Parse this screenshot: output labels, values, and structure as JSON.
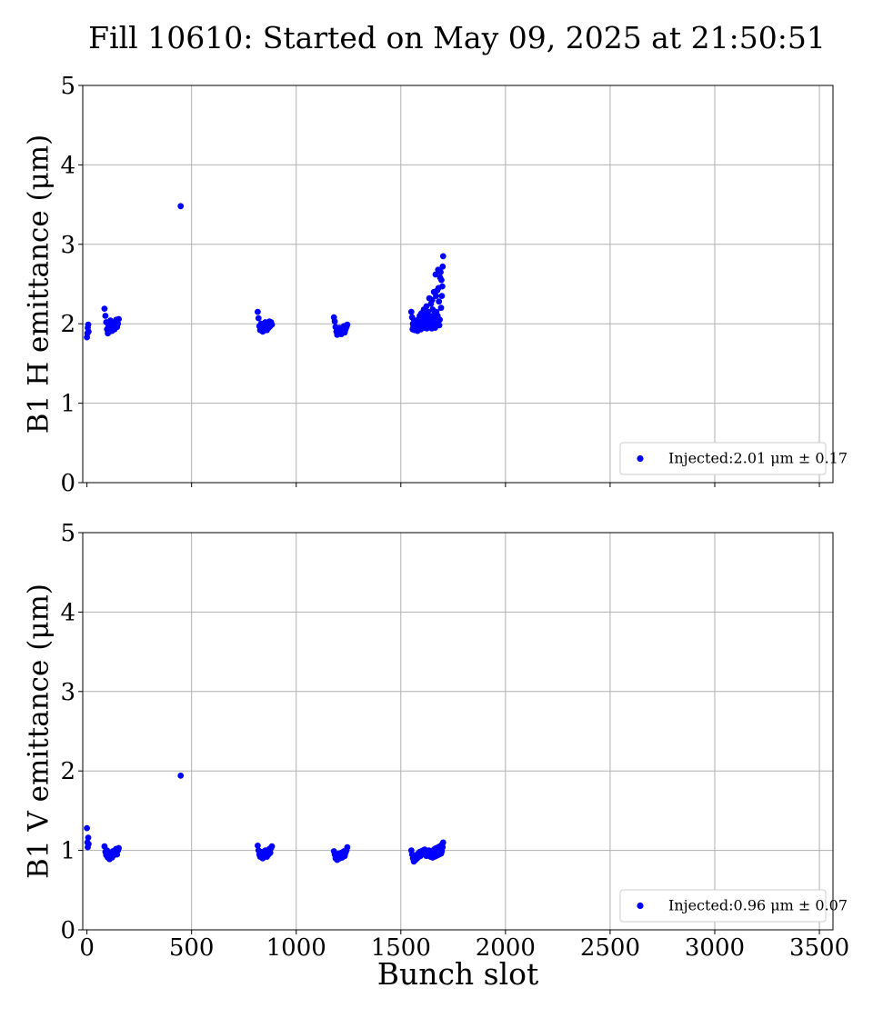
{
  "figure": {
    "title": "Fill 10610: Started on May 09, 2025 at 21:50:51",
    "xlabel": "Bunch slot"
  },
  "chart_data": [
    {
      "type": "scatter",
      "ylabel": "B1 H emittance (μm)",
      "xlim": [
        -20,
        3565
      ],
      "ylim": [
        0,
        5
      ],
      "xticks": [
        0,
        500,
        1000,
        1500,
        2000,
        2500,
        3000,
        3500
      ],
      "yticks": [
        0,
        1,
        2,
        3,
        4,
        5
      ],
      "grid": true,
      "legend_position": "lower-right",
      "series": [
        {
          "name": "Injected:2.01 μm ± 0.17",
          "color": "#0000ff",
          "points": [
            [
              0,
              1.83
            ],
            [
              2,
              1.88
            ],
            [
              4,
              1.95
            ],
            [
              6,
              1.99
            ],
            [
              8,
              1.9
            ],
            [
              84,
              2.19
            ],
            [
              88,
              2.1
            ],
            [
              92,
              2.02
            ],
            [
              96,
              1.93
            ],
            [
              100,
              1.88
            ],
            [
              104,
              1.97
            ],
            [
              108,
              1.9
            ],
            [
              112,
              2.04
            ],
            [
              116,
              1.95
            ],
            [
              120,
              1.91
            ],
            [
              124,
              1.99
            ],
            [
              128,
              2.02
            ],
            [
              132,
              1.93
            ],
            [
              136,
              1.97
            ],
            [
              140,
              2.05
            ],
            [
              144,
              1.96
            ],
            [
              148,
              2.0
            ],
            [
              152,
              2.06
            ],
            [
              448,
              3.48
            ],
            [
              816,
              2.15
            ],
            [
              820,
              2.07
            ],
            [
              824,
              1.97
            ],
            [
              828,
              1.92
            ],
            [
              832,
              2.0
            ],
            [
              836,
              1.94
            ],
            [
              840,
              1.9
            ],
            [
              844,
              1.99
            ],
            [
              848,
              1.93
            ],
            [
              852,
              2.02
            ],
            [
              856,
              1.96
            ],
            [
              860,
              1.92
            ],
            [
              864,
              2.0
            ],
            [
              868,
              1.95
            ],
            [
              872,
              2.03
            ],
            [
              876,
              1.97
            ],
            [
              880,
              2.02
            ],
            [
              884,
              1.99
            ],
            [
              1180,
              2.08
            ],
            [
              1184,
              2.03
            ],
            [
              1188,
              1.96
            ],
            [
              1192,
              1.9
            ],
            [
              1196,
              1.86
            ],
            [
              1200,
              1.93
            ],
            [
              1204,
              1.88
            ],
            [
              1208,
              1.95
            ],
            [
              1212,
              1.9
            ],
            [
              1216,
              1.87
            ],
            [
              1220,
              1.94
            ],
            [
              1224,
              1.91
            ],
            [
              1228,
              1.97
            ],
            [
              1232,
              1.89
            ],
            [
              1236,
              1.93
            ],
            [
              1240,
              1.96
            ],
            [
              1244,
              1.99
            ],
            [
              1550,
              2.15
            ],
            [
              1554,
              2.08
            ],
            [
              1558,
              2.0
            ],
            [
              1562,
              1.94
            ],
            [
              1566,
              1.92
            ],
            [
              1570,
              1.97
            ],
            [
              1574,
              2.02
            ],
            [
              1578,
              1.95
            ],
            [
              1582,
              2.05
            ],
            [
              1586,
              1.98
            ],
            [
              1590,
              2.1
            ],
            [
              1594,
              2.0
            ],
            [
              1598,
              2.13
            ],
            [
              1602,
              2.04
            ],
            [
              1606,
              2.08
            ],
            [
              1610,
              2.18
            ],
            [
              1614,
              2.02
            ],
            [
              1618,
              2.12
            ],
            [
              1622,
              2.22
            ],
            [
              1626,
              2.06
            ],
            [
              1630,
              2.15
            ],
            [
              1634,
              1.96
            ],
            [
              1638,
              2.05
            ],
            [
              1642,
              1.98
            ],
            [
              1646,
              2.09
            ],
            [
              1650,
              2.3
            ],
            [
              1654,
              2.0
            ],
            [
              1658,
              2.4
            ],
            [
              1662,
              2.07
            ],
            [
              1666,
              2.62
            ],
            [
              1670,
              2.15
            ],
            [
              1674,
              2.42
            ],
            [
              1678,
              2.68
            ],
            [
              1682,
              2.28
            ],
            [
              1686,
              2.05
            ],
            [
              1690,
              2.65
            ],
            [
              1694,
              2.55
            ],
            [
              1698,
              2.47
            ],
            [
              1702,
              2.85
            ],
            [
              1700,
              2.72
            ],
            [
              1696,
              2.35
            ],
            [
              1692,
              2.2
            ],
            [
              1688,
              2.58
            ],
            [
              1684,
              1.98
            ],
            [
              1680,
              2.45
            ],
            [
              1676,
              2.1
            ],
            [
              1672,
              2.0
            ],
            [
              1668,
              2.35
            ],
            [
              1664,
              1.95
            ],
            [
              1660,
              2.12
            ],
            [
              1656,
              1.97
            ],
            [
              1652,
              2.18
            ],
            [
              1648,
              1.94
            ],
            [
              1644,
              2.25
            ],
            [
              1640,
              2.02
            ],
            [
              1636,
              2.32
            ],
            [
              1632,
              2.1
            ],
            [
              1628,
              2.0
            ],
            [
              1624,
              1.94
            ],
            [
              1620,
              2.06
            ],
            [
              1616,
              1.99
            ],
            [
              1612,
              1.95
            ],
            [
              1608,
              2.01
            ],
            [
              1604,
              1.96
            ],
            [
              1600,
              2.07
            ],
            [
              1596,
              1.93
            ],
            [
              1592,
              1.99
            ],
            [
              1588,
              2.03
            ],
            [
              1584,
              1.96
            ],
            [
              1580,
              1.91
            ],
            [
              1576,
              2.01
            ],
            [
              1572,
              1.95
            ],
            [
              1568,
              1.99
            ],
            [
              1564,
              2.04
            ],
            [
              1560,
              1.97
            ],
            [
              1556,
              1.93
            ]
          ]
        }
      ]
    },
    {
      "type": "scatter",
      "ylabel": "B1 V emittance (μm)",
      "xlim": [
        -20,
        3565
      ],
      "ylim": [
        0,
        5
      ],
      "xticks": [
        0,
        500,
        1000,
        1500,
        2000,
        2500,
        3000,
        3500
      ],
      "yticks": [
        0,
        1,
        2,
        3,
        4,
        5
      ],
      "grid": true,
      "legend_position": "lower-right",
      "series": [
        {
          "name": "Injected:0.96 μm ± 0.07",
          "color": "#0000ff",
          "points": [
            [
              0,
              1.28
            ],
            [
              2,
              1.1
            ],
            [
              4,
              1.04
            ],
            [
              6,
              1.16
            ],
            [
              8,
              1.08
            ],
            [
              84,
              1.05
            ],
            [
              88,
              0.98
            ],
            [
              92,
              0.94
            ],
            [
              96,
              1.0
            ],
            [
              100,
              0.91
            ],
            [
              104,
              0.96
            ],
            [
              108,
              0.89
            ],
            [
              112,
              0.93
            ],
            [
              116,
              0.97
            ],
            [
              120,
              0.91
            ],
            [
              124,
              0.99
            ],
            [
              128,
              0.94
            ],
            [
              132,
              1.0
            ],
            [
              136,
              0.96
            ],
            [
              140,
              1.02
            ],
            [
              144,
              0.95
            ],
            [
              148,
              1.0
            ],
            [
              152,
              1.03
            ],
            [
              448,
              1.94
            ],
            [
              816,
              1.06
            ],
            [
              820,
              1.0
            ],
            [
              824,
              0.95
            ],
            [
              828,
              0.92
            ],
            [
              832,
              0.98
            ],
            [
              836,
              0.94
            ],
            [
              840,
              0.9
            ],
            [
              844,
              0.97
            ],
            [
              848,
              0.93
            ],
            [
              852,
              1.0
            ],
            [
              856,
              0.95
            ],
            [
              860,
              0.92
            ],
            [
              864,
              0.99
            ],
            [
              868,
              0.95
            ],
            [
              872,
              1.02
            ],
            [
              876,
              0.97
            ],
            [
              880,
              1.03
            ],
            [
              884,
              1.05
            ],
            [
              1180,
              0.99
            ],
            [
              1184,
              0.95
            ],
            [
              1188,
              0.9
            ],
            [
              1192,
              0.94
            ],
            [
              1196,
              0.88
            ],
            [
              1200,
              0.92
            ],
            [
              1204,
              0.96
            ],
            [
              1208,
              0.9
            ],
            [
              1212,
              0.94
            ],
            [
              1216,
              0.97
            ],
            [
              1220,
              0.91
            ],
            [
              1224,
              0.95
            ],
            [
              1228,
              0.99
            ],
            [
              1232,
              0.93
            ],
            [
              1236,
              0.97
            ],
            [
              1240,
              1.0
            ],
            [
              1244,
              1.04
            ],
            [
              1550,
              1.0
            ],
            [
              1554,
              0.95
            ],
            [
              1558,
              0.9
            ],
            [
              1562,
              0.86
            ],
            [
              1566,
              0.92
            ],
            [
              1570,
              0.88
            ],
            [
              1574,
              0.94
            ],
            [
              1578,
              0.9
            ],
            [
              1582,
              0.96
            ],
            [
              1586,
              0.92
            ],
            [
              1590,
              0.98
            ],
            [
              1594,
              0.93
            ],
            [
              1598,
              0.99
            ],
            [
              1602,
              0.95
            ],
            [
              1606,
              1.0
            ],
            [
              1610,
              0.96
            ],
            [
              1614,
              1.01
            ],
            [
              1618,
              0.97
            ],
            [
              1622,
              0.93
            ],
            [
              1626,
              0.99
            ],
            [
              1630,
              0.95
            ],
            [
              1634,
              1.0
            ],
            [
              1638,
              0.96
            ],
            [
              1642,
              0.92
            ],
            [
              1646,
              0.98
            ],
            [
              1650,
              0.94
            ],
            [
              1654,
              1.0
            ],
            [
              1658,
              0.96
            ],
            [
              1662,
              1.02
            ],
            [
              1666,
              0.97
            ],
            [
              1670,
              1.03
            ],
            [
              1674,
              0.98
            ],
            [
              1678,
              1.04
            ],
            [
              1682,
              1.0
            ],
            [
              1686,
              1.05
            ],
            [
              1690,
              1.01
            ],
            [
              1694,
              1.06
            ],
            [
              1698,
              1.08
            ],
            [
              1702,
              1.1
            ],
            [
              1700,
              1.04
            ],
            [
              1696,
              0.99
            ],
            [
              1692,
              0.96
            ],
            [
              1688,
              1.02
            ],
            [
              1684,
              0.95
            ],
            [
              1680,
              0.99
            ],
            [
              1676,
              0.94
            ],
            [
              1672,
              1.0
            ],
            [
              1668,
              0.93
            ],
            [
              1664,
              0.97
            ],
            [
              1660,
              0.92
            ],
            [
              1656,
              0.95
            ],
            [
              1652,
              0.91
            ],
            [
              1648,
              0.96
            ]
          ]
        }
      ]
    }
  ]
}
